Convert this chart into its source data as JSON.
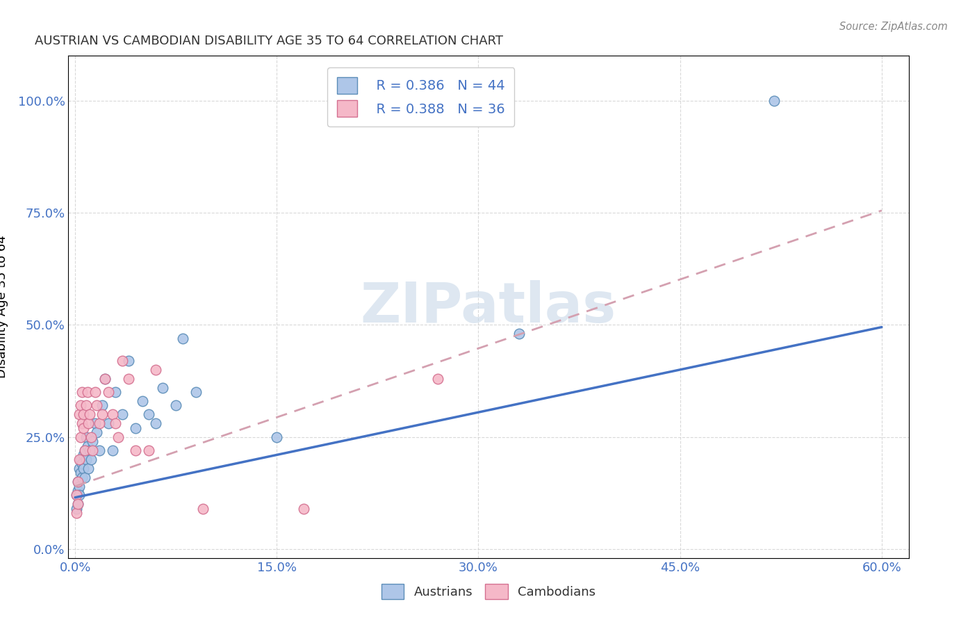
{
  "title": "AUSTRIAN VS CAMBODIAN DISABILITY AGE 35 TO 64 CORRELATION CHART",
  "source": "Source: ZipAtlas.com",
  "ylabel": "Disability Age 35 to 64",
  "xlim": [
    -0.005,
    0.62
  ],
  "ylim": [
    -0.02,
    1.1
  ],
  "xticklabels": [
    "0.0%",
    "15.0%",
    "30.0%",
    "45.0%",
    "60.0%"
  ],
  "xticks": [
    0.0,
    0.15,
    0.3,
    0.45,
    0.6
  ],
  "yticklabels": [
    "0.0%",
    "25.0%",
    "50.0%",
    "75.0%",
    "100.0%"
  ],
  "yticks": [
    0.0,
    0.25,
    0.5,
    0.75,
    1.0
  ],
  "legend_r_austrians": "R = 0.386",
  "legend_n_austrians": "N = 44",
  "legend_r_cambodians": "R = 0.388",
  "legend_n_cambodians": "N = 36",
  "austrian_fill_color": "#aec6e8",
  "austrian_edge_color": "#5b8db8",
  "cambodian_fill_color": "#f5b8c8",
  "cambodian_edge_color": "#d47090",
  "austrian_line_color": "#4472c4",
  "cambodian_line_color": "#d4a0b0",
  "watermark_color": "#c8d8e8",
  "austrian_trendline_x": [
    0.0,
    0.6
  ],
  "austrian_trendline_y": [
    0.115,
    0.495
  ],
  "cambodian_trendline_x": [
    0.0,
    0.6
  ],
  "cambodian_trendline_y": [
    0.14,
    0.755
  ],
  "austrian_scatter_x": [
    0.001,
    0.001,
    0.002,
    0.002,
    0.002,
    0.003,
    0.003,
    0.003,
    0.004,
    0.004,
    0.005,
    0.005,
    0.006,
    0.006,
    0.007,
    0.007,
    0.008,
    0.008,
    0.009,
    0.01,
    0.011,
    0.012,
    0.013,
    0.015,
    0.016,
    0.018,
    0.02,
    0.022,
    0.025,
    0.028,
    0.03,
    0.035,
    0.04,
    0.045,
    0.05,
    0.055,
    0.06,
    0.065,
    0.075,
    0.08,
    0.09,
    0.15,
    0.33,
    0.52
  ],
  "austrian_scatter_y": [
    0.12,
    0.09,
    0.13,
    0.15,
    0.1,
    0.14,
    0.18,
    0.12,
    0.17,
    0.2,
    0.16,
    0.19,
    0.21,
    0.18,
    0.22,
    0.16,
    0.2,
    0.25,
    0.23,
    0.18,
    0.22,
    0.2,
    0.24,
    0.28,
    0.26,
    0.22,
    0.32,
    0.38,
    0.28,
    0.22,
    0.35,
    0.3,
    0.42,
    0.27,
    0.33,
    0.3,
    0.28,
    0.36,
    0.32,
    0.47,
    0.35,
    0.25,
    0.48,
    1.0
  ],
  "cambodian_scatter_x": [
    0.001,
    0.001,
    0.002,
    0.002,
    0.003,
    0.003,
    0.004,
    0.004,
    0.005,
    0.005,
    0.006,
    0.006,
    0.007,
    0.008,
    0.009,
    0.01,
    0.011,
    0.012,
    0.013,
    0.015,
    0.016,
    0.018,
    0.02,
    0.022,
    0.025,
    0.028,
    0.03,
    0.032,
    0.035,
    0.04,
    0.045,
    0.055,
    0.06,
    0.095,
    0.17,
    0.27
  ],
  "cambodian_scatter_y": [
    0.08,
    0.12,
    0.15,
    0.1,
    0.2,
    0.3,
    0.25,
    0.32,
    0.28,
    0.35,
    0.3,
    0.27,
    0.22,
    0.32,
    0.35,
    0.28,
    0.3,
    0.25,
    0.22,
    0.35,
    0.32,
    0.28,
    0.3,
    0.38,
    0.35,
    0.3,
    0.28,
    0.25,
    0.42,
    0.38,
    0.22,
    0.22,
    0.4,
    0.09,
    0.09,
    0.38
  ]
}
